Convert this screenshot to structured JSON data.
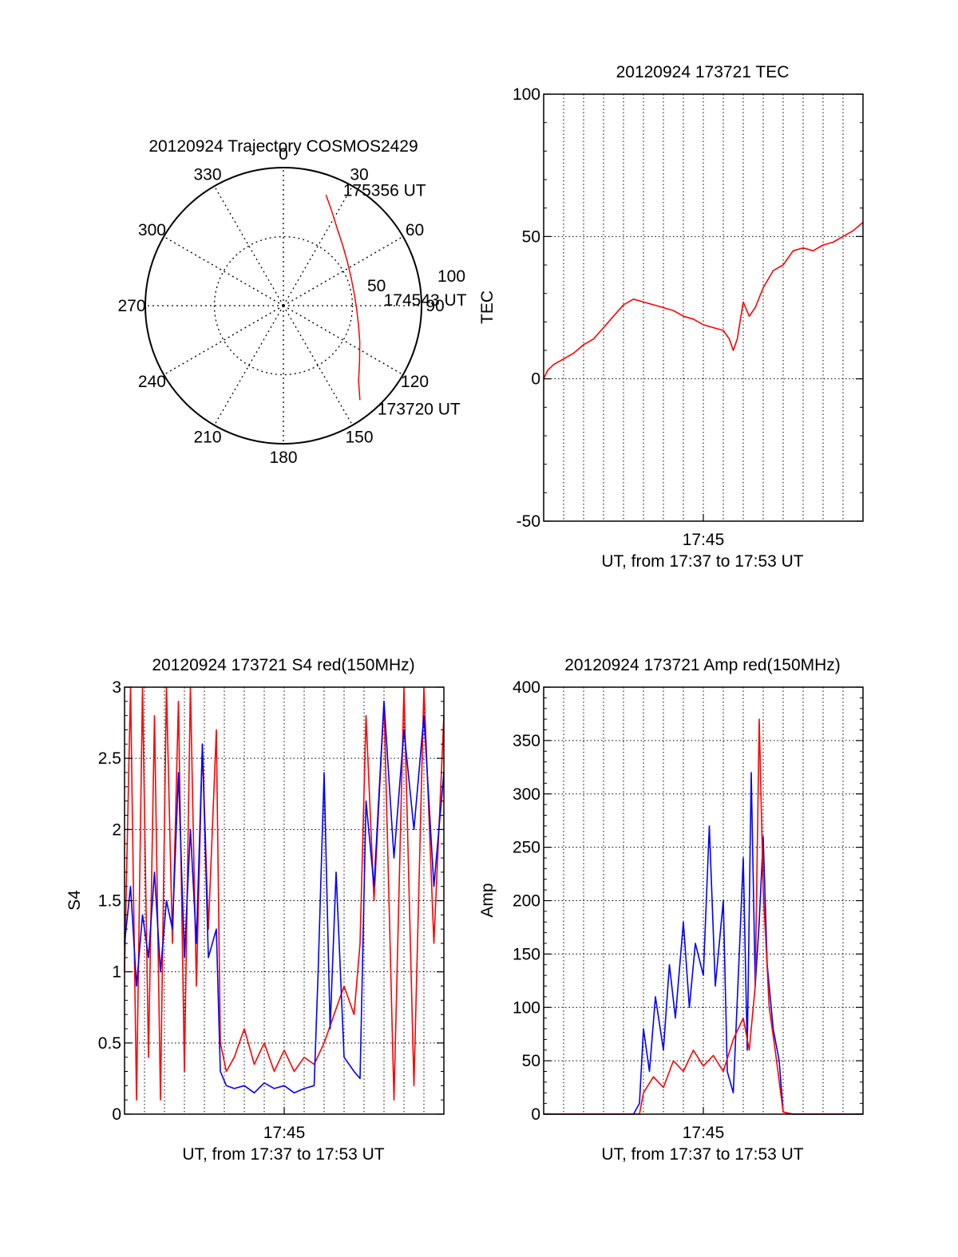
{
  "chart_data": [
    {
      "id": "trajectory",
      "type": "polar",
      "title": "20120924 Trajectory COSMOS2429",
      "angle_labels": [
        "0",
        "30",
        "60",
        "90",
        "120",
        "150",
        "180",
        "210",
        "240",
        "270",
        "300",
        "330"
      ],
      "radial_labels": [
        "50",
        "100"
      ],
      "radial_max": 100,
      "series": [
        {
          "color": "#ff0000",
          "points": [
            {
              "az": 21,
              "r": 86
            },
            {
              "az": 27,
              "r": 77
            },
            {
              "az": 35,
              "r": 68
            },
            {
              "az": 45,
              "r": 61
            },
            {
              "az": 56,
              "r": 56
            },
            {
              "az": 68,
              "r": 53
            },
            {
              "az": 80,
              "r": 52
            },
            {
              "az": 92,
              "r": 53
            },
            {
              "az": 104,
              "r": 56
            },
            {
              "az": 115,
              "r": 61
            },
            {
              "az": 127,
              "r": 69
            },
            {
              "az": 135,
              "r": 77
            },
            {
              "az": 141,
              "r": 88
            }
          ]
        }
      ],
      "annotations": [
        {
          "text": "175356 UT",
          "az": 24,
          "r": 92
        },
        {
          "text": "174543 UT",
          "az": 86,
          "r": 67
        },
        {
          "text": "173720 UT",
          "az": 140,
          "r": 97
        }
      ]
    },
    {
      "id": "tec",
      "type": "line",
      "title": "20120924 173721 TEC",
      "xlabel": "UT, from 17:37 to 17:53 UT",
      "ylabel": "TEC",
      "ylim": [
        -50,
        100
      ],
      "yticks": [
        "100",
        "50",
        "0",
        "-50"
      ],
      "xlim_min": [
        0,
        16
      ],
      "xtick_label": "17:45",
      "xtick_min": 8,
      "series": [
        {
          "color": "#ff0000",
          "x": [
            0.0,
            0.2,
            0.5,
            1.0,
            1.5,
            2.0,
            2.5,
            3.0,
            3.5,
            4.0,
            4.5,
            5.0,
            5.5,
            6.0,
            6.5,
            7.0,
            7.5,
            8.0,
            8.5,
            9.0,
            9.3,
            9.5,
            9.7,
            10.0,
            10.3,
            10.6,
            11.0,
            11.5,
            12.0,
            12.5,
            13.0,
            13.5,
            14.0,
            14.5,
            15.0,
            15.5,
            16.0
          ],
          "values": [
            0,
            3,
            5,
            7,
            9,
            12,
            14,
            18,
            22,
            26,
            28,
            27,
            26,
            25,
            24,
            22,
            21,
            19,
            18,
            17,
            14,
            10,
            14,
            27,
            22,
            25,
            32,
            38,
            40,
            45,
            46,
            45,
            47,
            48,
            50,
            52,
            55
          ]
        }
      ]
    },
    {
      "id": "s4",
      "type": "line",
      "title": "20120924 173721 S4 red(150MHz)",
      "xlabel": "UT, from 17:37 to 17:53 UT",
      "ylabel": "S4",
      "ylim": [
        0,
        3
      ],
      "yticks": [
        "3",
        "2.5",
        "2",
        "1.5",
        "1",
        "0.5",
        "0"
      ],
      "xlim_min": [
        0,
        16
      ],
      "xtick_label": "17:45",
      "xtick_min": 8,
      "series": [
        {
          "color": "#ff0000",
          "x": [
            0.0,
            0.3,
            0.6,
            0.9,
            1.2,
            1.5,
            1.8,
            2.1,
            2.4,
            2.7,
            3.0,
            3.3,
            3.6,
            3.9,
            4.2,
            4.6,
            4.8,
            5.1,
            5.5,
            6.0,
            6.5,
            7.0,
            7.5,
            8.0,
            8.5,
            9.0,
            9.5,
            10.0,
            10.5,
            11.0,
            11.5,
            11.8,
            12.1,
            12.5,
            13.0,
            13.5,
            14.0,
            14.5,
            15.0,
            15.5,
            16.0
          ],
          "values": [
            1.0,
            3.0,
            0.1,
            3.0,
            0.4,
            2.8,
            0.1,
            3.0,
            1.2,
            2.9,
            0.3,
            3.0,
            0.9,
            2.6,
            1.3,
            2.7,
            0.5,
            0.3,
            0.4,
            0.6,
            0.35,
            0.5,
            0.3,
            0.45,
            0.3,
            0.4,
            0.35,
            0.5,
            0.7,
            0.9,
            0.7,
            1.2,
            2.8,
            1.5,
            2.9,
            0.1,
            3.0,
            0.2,
            3.0,
            1.2,
            2.8
          ]
        },
        {
          "color": "#0000ff",
          "x": [
            0.0,
            0.3,
            0.6,
            0.9,
            1.2,
            1.5,
            1.8,
            2.1,
            2.4,
            2.7,
            3.0,
            3.3,
            3.6,
            3.9,
            4.2,
            4.6,
            4.8,
            5.1,
            5.5,
            6.0,
            6.5,
            7.0,
            7.5,
            8.0,
            8.5,
            9.0,
            9.5,
            9.7,
            10.0,
            10.3,
            10.6,
            11.0,
            11.5,
            11.8,
            12.1,
            12.5,
            13.0,
            13.5,
            14.0,
            14.5,
            15.0,
            15.5,
            16.0
          ],
          "values": [
            1.2,
            1.6,
            0.9,
            1.4,
            1.1,
            1.7,
            1.0,
            1.5,
            1.3,
            2.4,
            1.1,
            2.0,
            1.2,
            2.6,
            1.1,
            1.3,
            0.3,
            0.2,
            0.18,
            0.2,
            0.15,
            0.22,
            0.18,
            0.2,
            0.15,
            0.18,
            0.2,
            1.0,
            2.4,
            0.6,
            1.7,
            0.4,
            0.3,
            0.25,
            2.2,
            1.6,
            2.9,
            1.8,
            2.7,
            2.0,
            2.8,
            1.6,
            2.4
          ]
        }
      ]
    },
    {
      "id": "amp",
      "type": "line",
      "title": "20120924 173721 Amp red(150MHz)",
      "xlabel": "UT, from 17:37 to 17:53 UT",
      "ylabel": "Amp",
      "ylim": [
        0,
        400
      ],
      "yticks": [
        "400",
        "350",
        "300",
        "250",
        "200",
        "150",
        "100",
        "50",
        "0"
      ],
      "xlim_min": [
        0,
        16
      ],
      "xtick_label": "17:45",
      "xtick_min": 8,
      "series": [
        {
          "color": "#0000ff",
          "x": [
            0.0,
            4.5,
            4.8,
            5.0,
            5.3,
            5.6,
            6.0,
            6.3,
            6.6,
            7.0,
            7.3,
            7.6,
            8.0,
            8.3,
            8.6,
            9.0,
            9.2,
            9.5,
            9.8,
            10.0,
            10.2,
            10.4,
            10.6,
            10.8,
            11.0,
            11.2,
            11.5,
            11.8,
            12.0,
            12.5,
            16.0
          ],
          "values": [
            0,
            0,
            10,
            80,
            40,
            110,
            60,
            140,
            90,
            180,
            100,
            160,
            130,
            270,
            120,
            200,
            40,
            20,
            150,
            240,
            60,
            320,
            120,
            180,
            260,
            140,
            80,
            50,
            2,
            0,
            0
          ]
        },
        {
          "color": "#ff0000",
          "x": [
            0.0,
            4.8,
            5.0,
            5.5,
            6.0,
            6.5,
            7.0,
            7.5,
            8.0,
            8.5,
            9.0,
            9.5,
            10.0,
            10.3,
            10.6,
            10.8,
            11.0,
            11.3,
            11.6,
            12.0,
            12.5,
            16.0
          ],
          "values": [
            0,
            0,
            20,
            35,
            25,
            50,
            40,
            60,
            45,
            55,
            40,
            70,
            90,
            60,
            120,
            370,
            210,
            100,
            60,
            2,
            0,
            0
          ]
        }
      ]
    }
  ]
}
